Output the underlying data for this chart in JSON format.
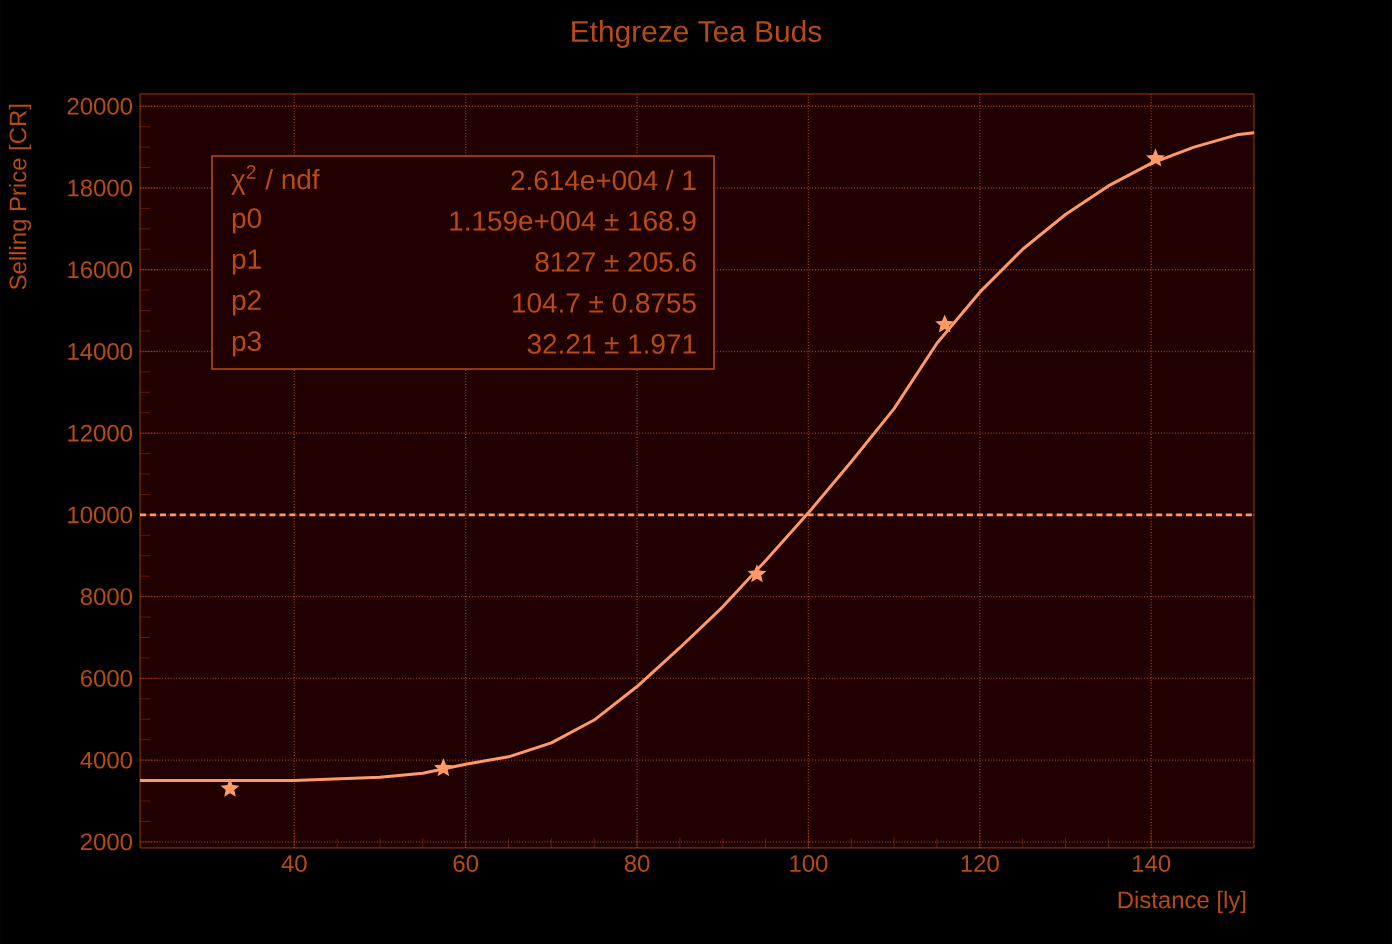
{
  "chart_data": {
    "type": "scatter",
    "title": "Ethgreze Tea Buds",
    "xlabel": "Distance [ly]",
    "ylabel": "Selling Price [CR]",
    "series": [
      {
        "type": "scatter",
        "color": "#ff9966",
        "marker": "star",
        "x": [
          32.5,
          57.4,
          94,
          115.9,
          140.5
        ],
        "values": [
          3300,
          3800,
          8550,
          14660,
          18720
        ]
      },
      {
        "type": "line",
        "color": "#ff9966",
        "marker": "none",
        "line_style": "solid",
        "x": [
          22,
          30,
          40,
          50,
          55,
          60,
          65,
          70,
          75,
          80,
          85,
          90,
          95,
          100,
          105,
          110,
          115,
          120,
          125,
          130,
          135,
          140,
          145,
          150,
          152
        ],
        "values": [
          3500,
          3500,
          3500,
          3580,
          3680,
          3900,
          4080,
          4420,
          4980,
          5800,
          6750,
          7750,
          8880,
          10050,
          11300,
          12600,
          14200,
          15450,
          16500,
          17350,
          18050,
          18600,
          19000,
          19300,
          19350
        ]
      }
    ],
    "xlim": [
      22,
      152
    ],
    "ylim": [
      1850,
      20300
    ],
    "xticks": [
      40,
      60,
      80,
      100,
      120,
      140
    ],
    "yticks": [
      2000,
      4000,
      6000,
      8000,
      10000,
      12000,
      14000,
      16000,
      18000,
      20000
    ],
    "grid": true,
    "ref_lines": [
      {
        "axis": "y",
        "value": 10000,
        "color": "#ff9966",
        "line_style": "dashed"
      }
    ],
    "annotations": [
      "χ$^{2}$ / ndf",
      "2.614e+004 / 1",
      "p0",
      "1.159e+004 ± 168.9",
      "p1",
      "8127 ± 205.6",
      "p2",
      "104.7 ± 0.8755",
      "p3",
      "32.21 ± 1.971"
    ]
  }
}
